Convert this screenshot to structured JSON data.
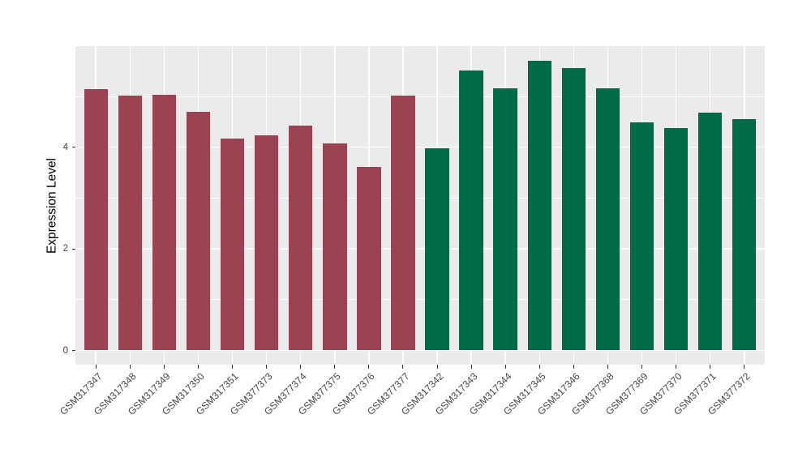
{
  "chart_data": {
    "type": "bar",
    "title": "",
    "xlabel": "",
    "ylabel": "Expression Level",
    "categories": [
      "GSM317347",
      "GSM317348",
      "GSM317349",
      "GSM317350",
      "GSM317351",
      "GSM377373",
      "GSM377374",
      "GSM377375",
      "GSM377376",
      "GSM377377",
      "GSM317342",
      "GSM317343",
      "GSM317344",
      "GSM317345",
      "GSM317346",
      "GSM377368",
      "GSM377369",
      "GSM377370",
      "GSM377371",
      "GSM377372"
    ],
    "values": [
      5.15,
      5.02,
      5.03,
      4.69,
      4.17,
      4.23,
      4.42,
      4.08,
      3.62,
      5.02,
      3.98,
      5.51,
      5.16,
      5.7,
      5.56,
      5.16,
      4.49,
      4.38,
      4.68,
      4.56
    ],
    "groups": [
      "group1",
      "group1",
      "group1",
      "group1",
      "group1",
      "group1",
      "group1",
      "group1",
      "group1",
      "group1",
      "group2",
      "group2",
      "group2",
      "group2",
      "group2",
      "group2",
      "group2",
      "group2",
      "group2",
      "group2"
    ],
    "group_colors": {
      "group1": "#9C4351",
      "group2": "#006B47"
    },
    "y_axis": {
      "ticks": [
        0,
        2,
        4
      ],
      "tick_labels": [
        "0",
        "2",
        "4"
      ],
      "minor_ticks": [
        1,
        3,
        5
      ],
      "range": [
        -0.28,
        5.99
      ]
    },
    "legend": "none",
    "grid": "on",
    "style": {
      "panel_bg": "#EBEBEB",
      "grid_color": "#FFFFFF",
      "axis_text_color": "#444444",
      "axis_title_color": "#000000",
      "tick_color": "#333333",
      "bar_width_frac": 0.7
    }
  }
}
